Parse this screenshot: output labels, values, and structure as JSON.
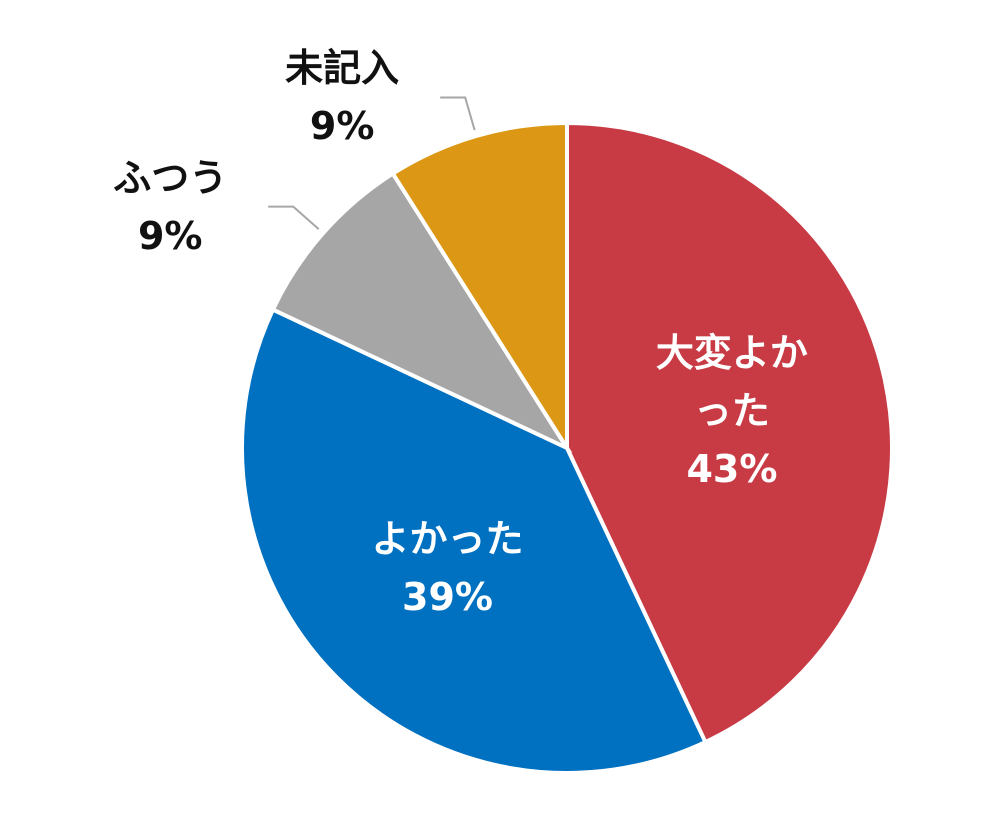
{
  "chart_data": {
    "type": "pie",
    "categories": [
      "大変よかった",
      "よかった",
      "ふつう",
      "未記入"
    ],
    "values": [
      43,
      39,
      9,
      9
    ],
    "value_labels": [
      "43%",
      "39%",
      "9%",
      "9%"
    ],
    "colors": [
      "#c83a44",
      "#0070c0",
      "#a6a6a6",
      "#dc9714"
    ]
  }
}
